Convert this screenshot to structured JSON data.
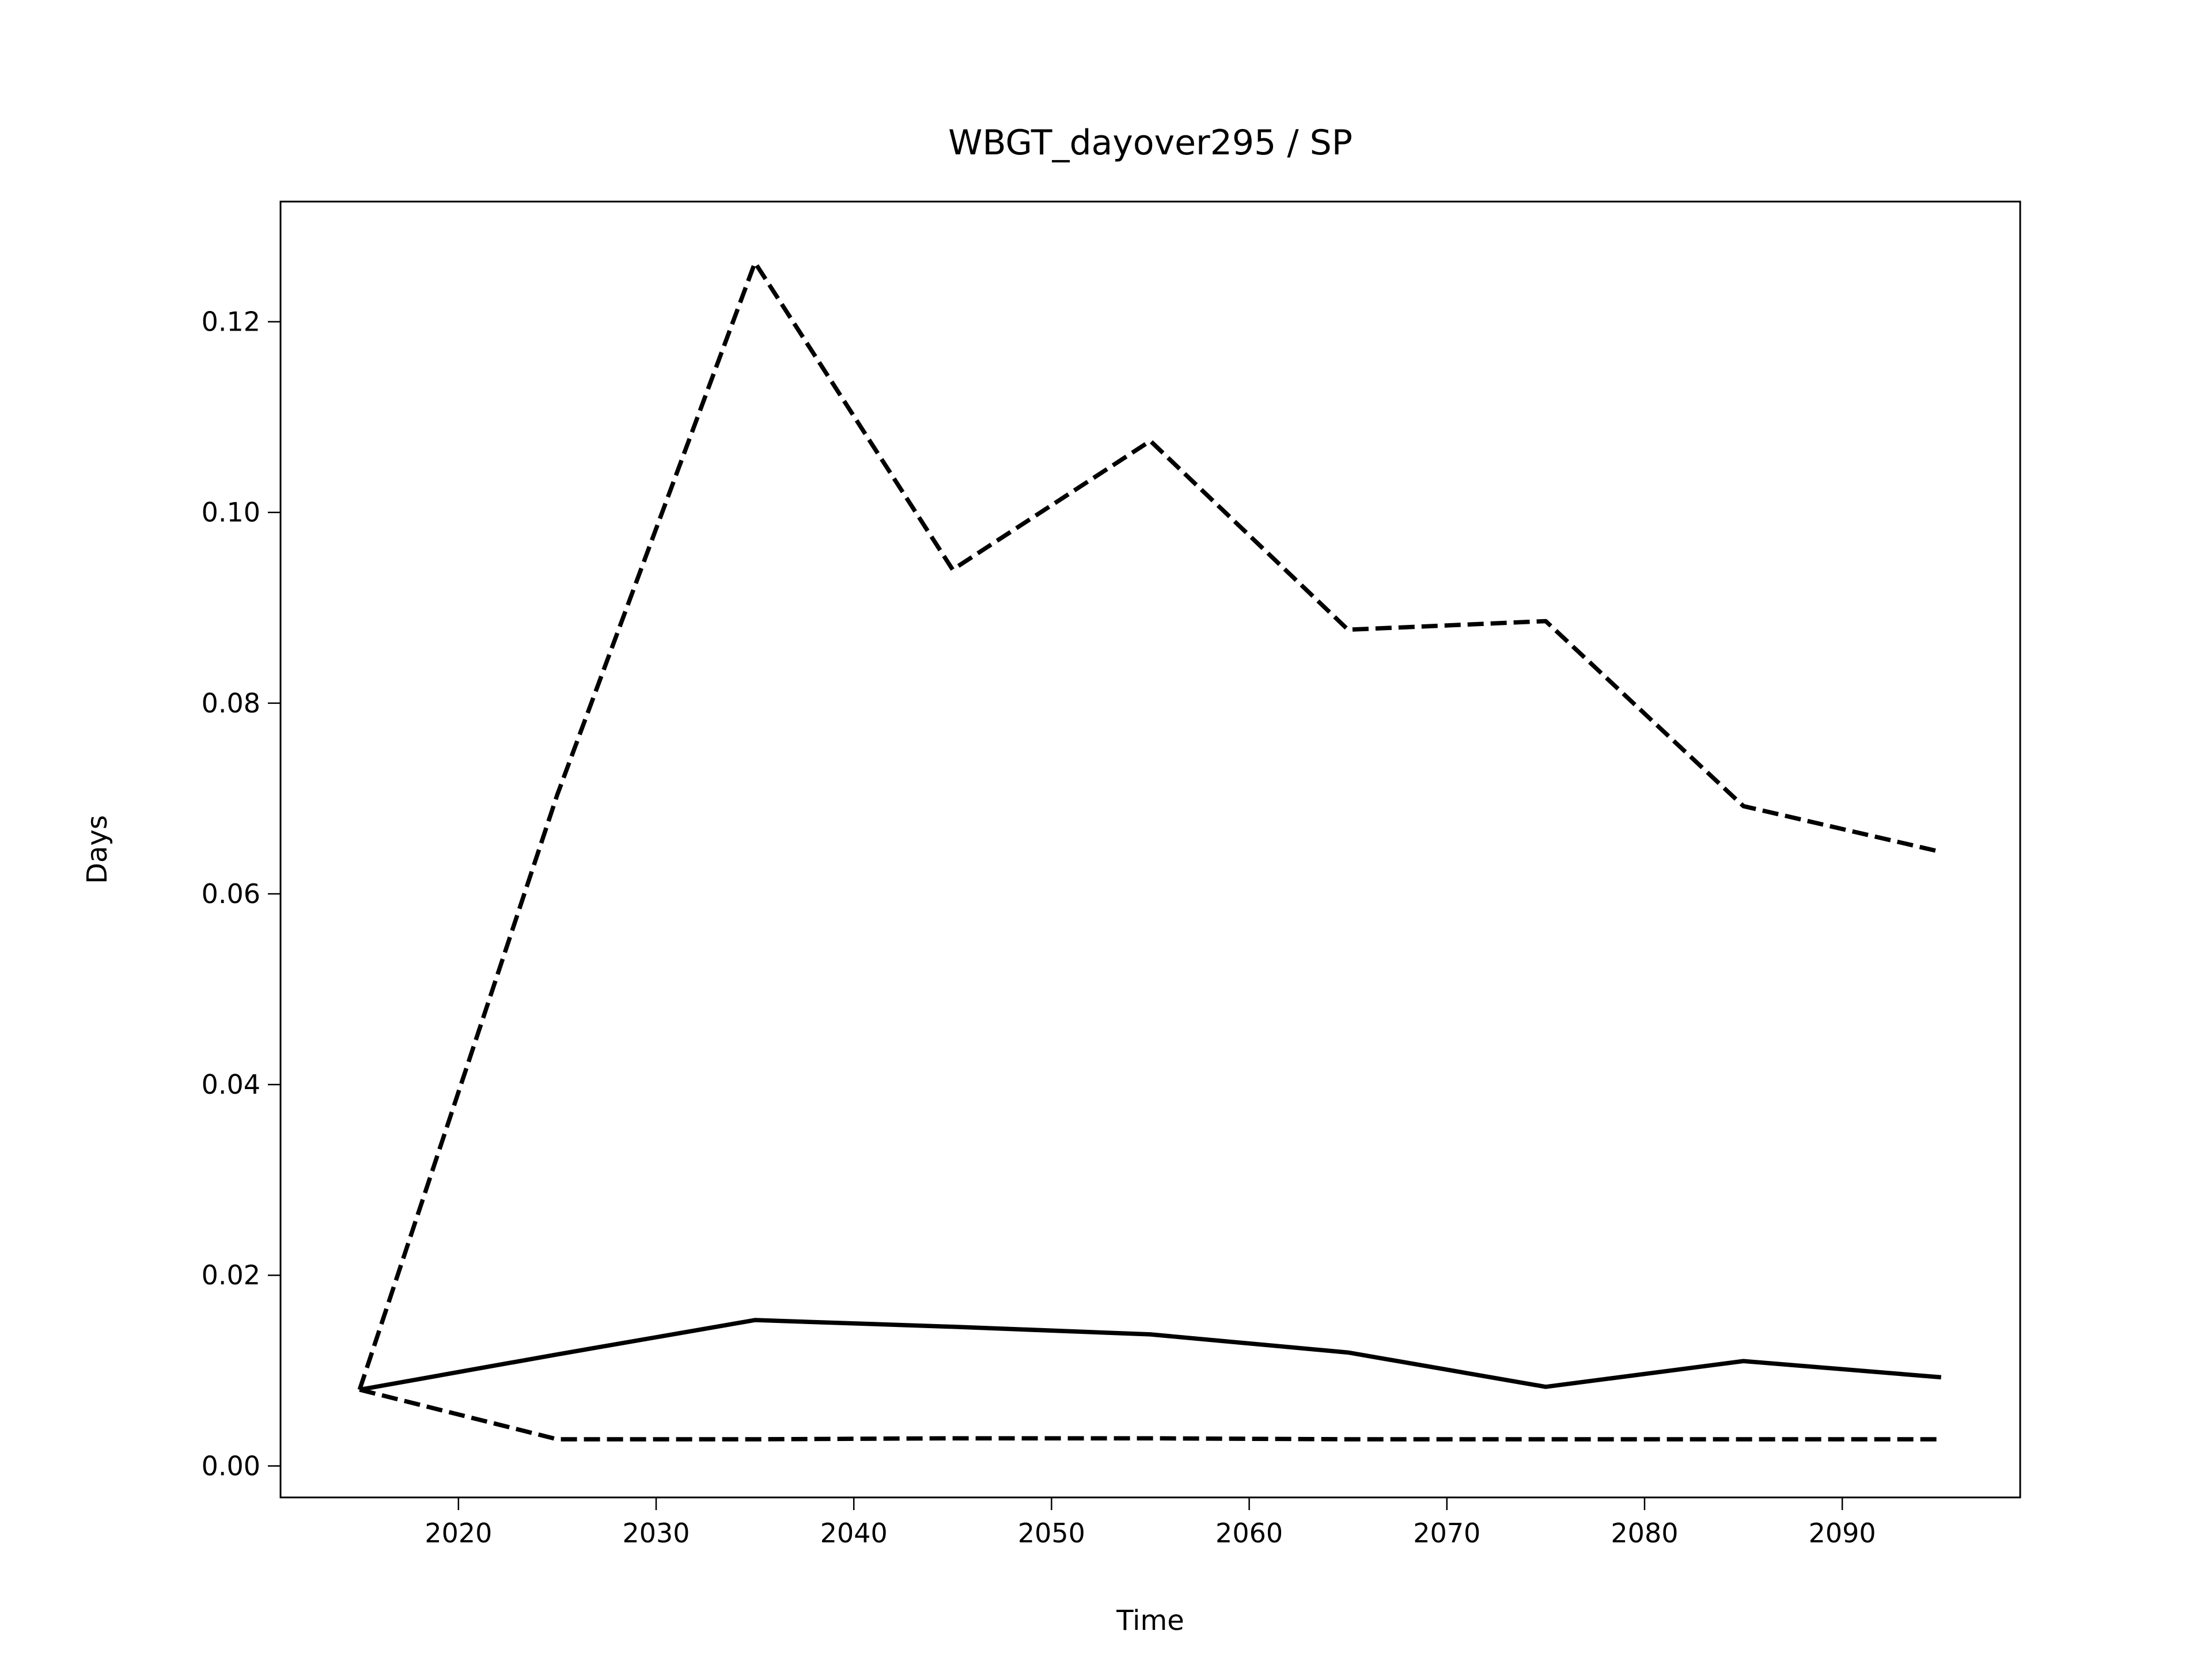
{
  "chart_data": {
    "type": "line",
    "title": "WBGT_dayover295 / SP",
    "x_label": "Time",
    "y_label": "Days",
    "x": [
      2015,
      2025,
      2035,
      2045,
      2055,
      2065,
      2075,
      2085,
      2095
    ],
    "series": [
      {
        "color": "#000000",
        "linestyle": "solid",
        "values": [
          0.008,
          0.0117,
          0.0153,
          0.0146,
          0.0138,
          0.0119,
          0.0083,
          0.011,
          0.0093
        ]
      },
      {
        "color": "#000000",
        "linestyle": "dashed",
        "values": [
          0.008,
          0.0704,
          0.1262,
          0.094,
          0.1075,
          0.0877,
          0.0886,
          0.0692,
          0.0644
        ]
      },
      {
        "color": "#000000",
        "linestyle": "dashed",
        "values": [
          0.008,
          0.0028,
          0.0028,
          0.0029,
          0.0029,
          0.0028,
          0.0028,
          0.0028,
          0.0028
        ]
      }
    ],
    "xlim": [
      2011,
      2099
    ],
    "xticks": [
      2020,
      2030,
      2040,
      2050,
      2060,
      2070,
      2080,
      2090
    ],
    "ylim": [
      -0.0033,
      0.1326
    ],
    "yticks": [
      {
        "value": 0,
        "label": "0.00"
      },
      {
        "value": 0.02,
        "label": "0.02"
      },
      {
        "value": 0.04,
        "label": "0.04"
      },
      {
        "value": 0.06,
        "label": "0.06"
      },
      {
        "value": 0.08,
        "label": "0.08"
      },
      {
        "value": 0.1,
        "label": "0.10"
      },
      {
        "value": 0.12,
        "label": "0.12"
      }
    ],
    "grid": false
  }
}
